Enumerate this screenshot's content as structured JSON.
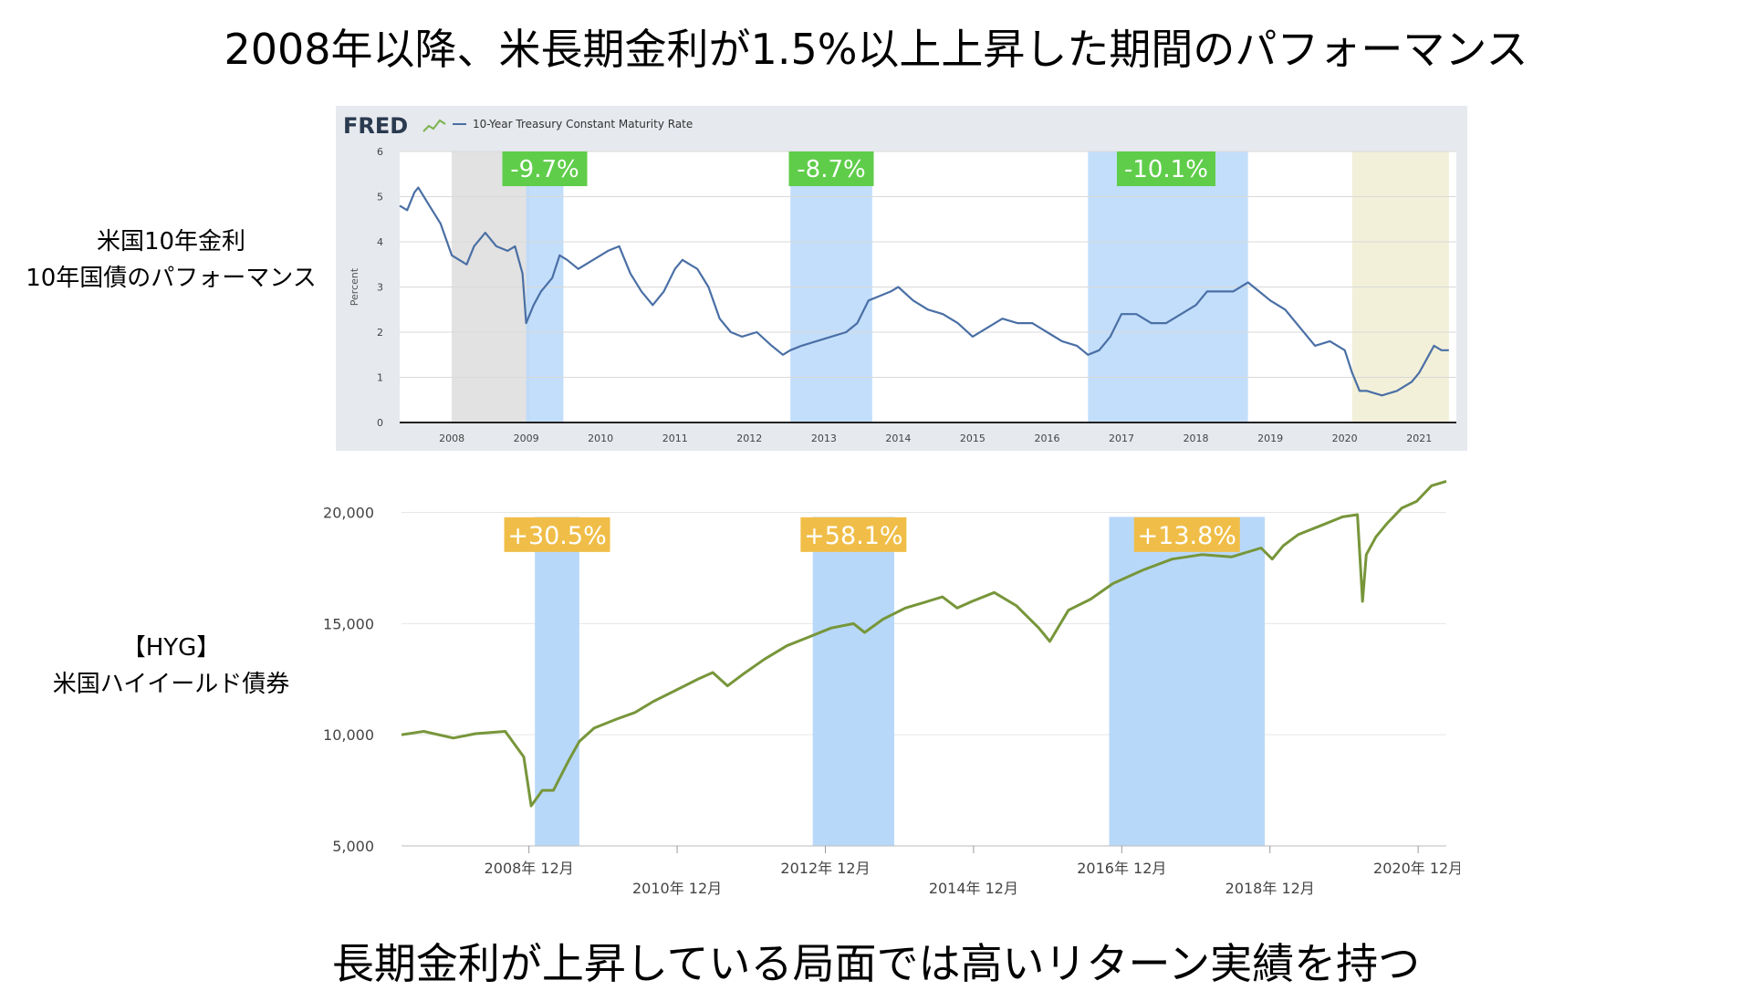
{
  "page": {
    "title": "2008年以降、米長期金利が1.5%以上上昇した期間のパフォーマンス",
    "footer": "長期金利が上昇している局面では高いリターン実績を持つ",
    "label_top_line1": "米国10年金利",
    "label_top_line2": "10年国債のパフォーマンス",
    "label_bottom_line1": "【HYG】",
    "label_bottom_line2": "米国ハイイールド債券"
  },
  "chart_data": [
    {
      "type": "line",
      "source_logo": "FRED",
      "legend": "10-Year Treasury Constant Maturity Rate",
      "ylabel": "Percent",
      "xlabel": "",
      "xlim": [
        2007.3,
        2021.5
      ],
      "ylim": [
        0,
        6
      ],
      "yticks": [
        0,
        1,
        2,
        3,
        4,
        5,
        6
      ],
      "xticks": [
        2008,
        2009,
        2010,
        2011,
        2012,
        2013,
        2014,
        2015,
        2016,
        2017,
        2018,
        2019,
        2020,
        2021
      ],
      "colors": {
        "line": "#4a6fa5",
        "highlight": "#b8d8fa",
        "recession": "#e2e2e2",
        "recession2": "#f2f0d9",
        "label_bg": "#5fcd4a",
        "panel_bg": "#e6e9ee"
      },
      "shaded_regions": [
        {
          "kind": "recession",
          "x": [
            2008.0,
            2009.05
          ]
        },
        {
          "kind": "highlight",
          "x": [
            2009.0,
            2009.5
          ]
        },
        {
          "kind": "highlight",
          "x": [
            2012.55,
            2013.65
          ]
        },
        {
          "kind": "highlight",
          "x": [
            2016.55,
            2018.7
          ]
        },
        {
          "kind": "recession2",
          "x": [
            2020.1,
            2021.4
          ]
        }
      ],
      "annotations": [
        {
          "text": "-9.7%",
          "x": 2009.25
        },
        {
          "text": "-8.7%",
          "x": 2013.1
        },
        {
          "text": "-10.1%",
          "x": 2017.6
        }
      ],
      "series": [
        {
          "x": [
            2007.3,
            2007.4,
            2007.5,
            2007.55,
            2007.7,
            2007.85,
            2008.0,
            2008.1,
            2008.2,
            2008.3,
            2008.45,
            2008.6,
            2008.75,
            2008.85,
            2008.95,
            2009.0,
            2009.1,
            2009.2,
            2009.35,
            2009.45,
            2009.55,
            2009.7,
            2009.9,
            2010.1,
            2010.25,
            2010.4,
            2010.55,
            2010.7,
            2010.85,
            2011.0,
            2011.1,
            2011.2,
            2011.3,
            2011.45,
            2011.6,
            2011.75,
            2011.9,
            2012.1,
            2012.3,
            2012.45,
            2012.55,
            2012.7,
            2012.9,
            2013.1,
            2013.3,
            2013.45,
            2013.6,
            2013.75,
            2013.9,
            2014.0,
            2014.2,
            2014.4,
            2014.6,
            2014.8,
            2015.0,
            2015.2,
            2015.4,
            2015.6,
            2015.8,
            2016.0,
            2016.2,
            2016.4,
            2016.55,
            2016.7,
            2016.85,
            2017.0,
            2017.2,
            2017.4,
            2017.6,
            2017.8,
            2018.0,
            2018.15,
            2018.3,
            2018.5,
            2018.7,
            2018.85,
            2019.0,
            2019.2,
            2019.4,
            2019.6,
            2019.8,
            2020.0,
            2020.1,
            2020.2,
            2020.3,
            2020.5,
            2020.7,
            2020.9,
            2021.0,
            2021.1,
            2021.2,
            2021.3,
            2021.4
          ],
          "y": [
            4.8,
            4.7,
            5.1,
            5.2,
            4.8,
            4.4,
            3.7,
            3.6,
            3.5,
            3.9,
            4.2,
            3.9,
            3.8,
            3.9,
            3.3,
            2.2,
            2.6,
            2.9,
            3.2,
            3.7,
            3.6,
            3.4,
            3.6,
            3.8,
            3.9,
            3.3,
            2.9,
            2.6,
            2.9,
            3.4,
            3.6,
            3.5,
            3.4,
            3.0,
            2.3,
            2.0,
            1.9,
            2.0,
            1.7,
            1.5,
            1.6,
            1.7,
            1.8,
            1.9,
            2.0,
            2.2,
            2.7,
            2.8,
            2.9,
            3.0,
            2.7,
            2.5,
            2.4,
            2.2,
            1.9,
            2.1,
            2.3,
            2.2,
            2.2,
            2.0,
            1.8,
            1.7,
            1.5,
            1.6,
            1.9,
            2.4,
            2.4,
            2.2,
            2.2,
            2.4,
            2.6,
            2.9,
            2.9,
            2.9,
            3.1,
            2.9,
            2.7,
            2.5,
            2.1,
            1.7,
            1.8,
            1.6,
            1.1,
            0.7,
            0.7,
            0.6,
            0.7,
            0.9,
            1.1,
            1.4,
            1.7,
            1.6,
            1.6
          ]
        }
      ]
    },
    {
      "type": "line",
      "xlim": [
        2007.2,
        2021.3
      ],
      "ylim": [
        5000,
        21500
      ],
      "yticks": [
        5000,
        10000,
        15000,
        20000
      ],
      "ytick_labels": [
        "5,000",
        "10,000",
        "15,000",
        "20,000"
      ],
      "xticks": [
        2008.92,
        2010.92,
        2012.92,
        2014.92,
        2016.92,
        2018.92,
        2020.92
      ],
      "xtick_labels": [
        "2008年 12月",
        "2010年 12月",
        "2012年 12月",
        "2014年 12月",
        "2016年 12月",
        "2018年 12月",
        "2020年 12月"
      ],
      "colors": {
        "line": "#77963a",
        "highlight": "#b8d8fa",
        "label_bg": "#f0be48",
        "grid": "#e6e6e6"
      },
      "shaded_regions": [
        {
          "kind": "highlight",
          "x": [
            2009.0,
            2009.6
          ]
        },
        {
          "kind": "highlight",
          "x": [
            2012.75,
            2013.85
          ]
        },
        {
          "kind": "highlight",
          "x": [
            2016.75,
            2018.85
          ]
        }
      ],
      "annotations": [
        {
          "text": "+30.5%",
          "x": 2009.3
        },
        {
          "text": "+58.1%",
          "x": 2013.3
        },
        {
          "text": "+13.8%",
          "x": 2017.8
        }
      ],
      "series": [
        {
          "x": [
            2007.2,
            2007.5,
            2007.9,
            2008.2,
            2008.6,
            2008.85,
            2008.95,
            2009.1,
            2009.25,
            2009.45,
            2009.6,
            2009.8,
            2010.1,
            2010.35,
            2010.6,
            2010.9,
            2011.2,
            2011.4,
            2011.6,
            2011.8,
            2012.1,
            2012.4,
            2012.7,
            2013.0,
            2013.3,
            2013.45,
            2013.7,
            2014.0,
            2014.3,
            2014.5,
            2014.7,
            2014.9,
            2015.2,
            2015.5,
            2015.8,
            2015.95,
            2016.2,
            2016.5,
            2016.8,
            2017.2,
            2017.6,
            2018.0,
            2018.4,
            2018.8,
            2018.95,
            2019.1,
            2019.3,
            2019.6,
            2019.9,
            2020.1,
            2020.17,
            2020.22,
            2020.35,
            2020.5,
            2020.7,
            2020.9,
            2021.1,
            2021.3
          ],
          "y": [
            10000,
            10150,
            9850,
            10050,
            10150,
            9000,
            6800,
            7500,
            7500,
            8800,
            9700,
            10300,
            10700,
            11000,
            11500,
            12000,
            12500,
            12800,
            12200,
            12700,
            13400,
            14000,
            14400,
            14800,
            15000,
            14600,
            15200,
            15700,
            16000,
            16200,
            15700,
            16000,
            16400,
            15800,
            14800,
            14200,
            15600,
            16100,
            16800,
            17400,
            17900,
            18100,
            18000,
            18400,
            17900,
            18500,
            19000,
            19400,
            19800,
            19900,
            16000,
            18100,
            18900,
            19500,
            20200,
            20500,
            21200,
            21400
          ]
        }
      ]
    }
  ]
}
